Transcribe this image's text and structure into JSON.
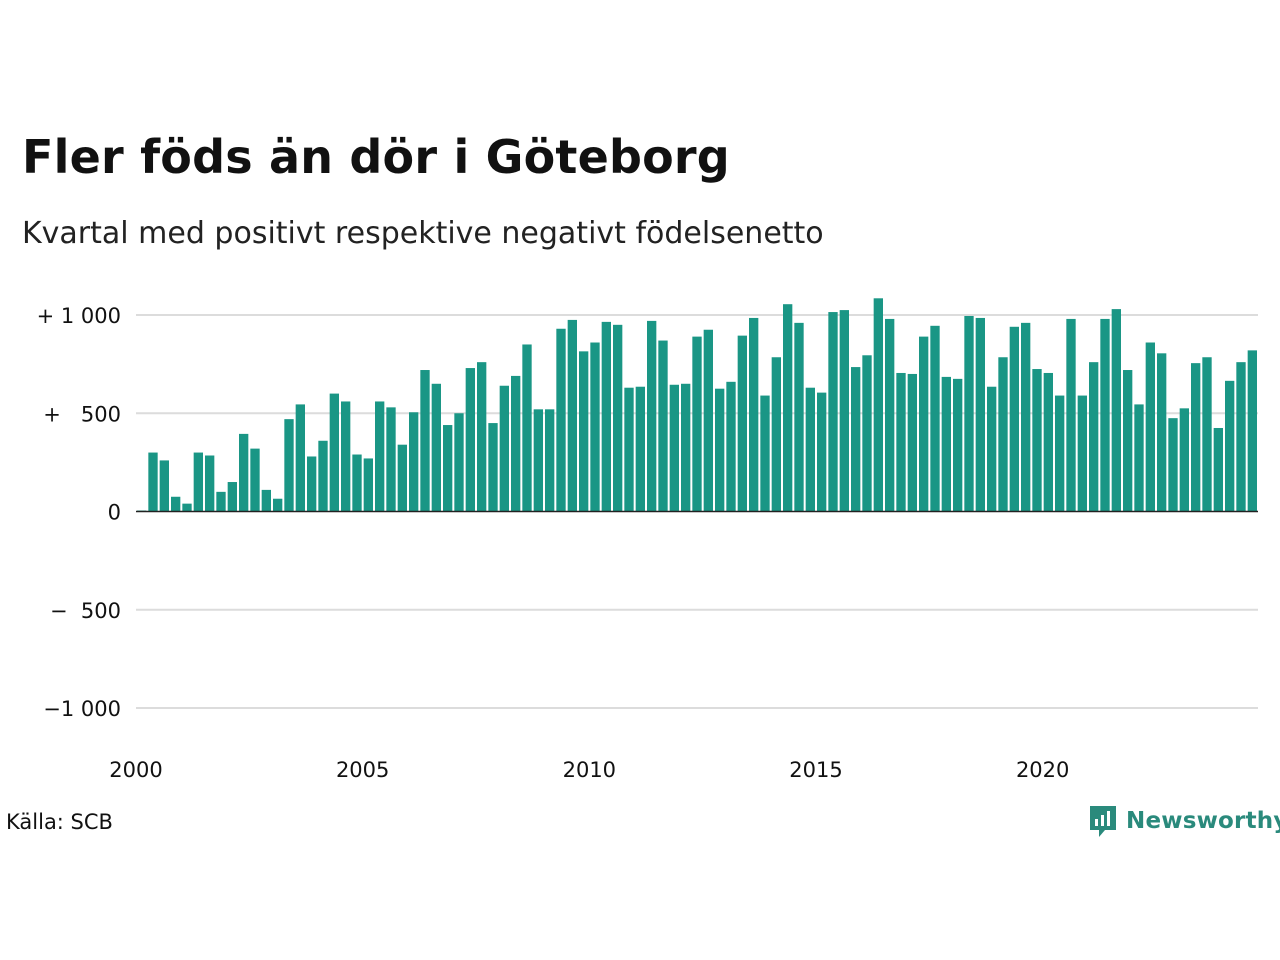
{
  "title": "Fler föds än dör i Göteborg",
  "subtitle": "Kvartal med positivt respektive negativt födelsenetto",
  "source": "Källa: SCB",
  "brand": "Newsworthy",
  "colors": {
    "positive_bar": "#1a9685",
    "gridline": "#dcdcdc",
    "zero_line": "#222222",
    "brand": "#2a8a7c"
  },
  "chart_data": {
    "type": "bar",
    "title": "Fler föds än dör i Göteborg",
    "subtitle": "Kvartal med positivt respektive negativt födelsenetto",
    "xlabel": "",
    "ylabel": "",
    "ylim": [
      -1000,
      1000
    ],
    "y_ticks": [
      1000,
      500,
      0,
      -500,
      -1000
    ],
    "y_tick_labels": [
      "+ 1 000",
      "+   500",
      "0",
      "−  500",
      "−1 000"
    ],
    "x_ticks": [
      2000,
      2005,
      2010,
      2015,
      2020
    ],
    "x_tick_labels": [
      "2000",
      "2005",
      "2010",
      "2015",
      "2020"
    ],
    "grid": true,
    "legend": "none",
    "first_quarter": "2000 Q1",
    "values": [
      5,
      300,
      260,
      75,
      40,
      300,
      285,
      100,
      150,
      395,
      320,
      110,
      65,
      470,
      545,
      280,
      360,
      600,
      560,
      290,
      270,
      560,
      530,
      340,
      505,
      720,
      650,
      440,
      500,
      730,
      760,
      450,
      640,
      690,
      850,
      520,
      520,
      930,
      975,
      815,
      860,
      965,
      950,
      630,
      635,
      970,
      870,
      645,
      650,
      890,
      925,
      625,
      660,
      895,
      985,
      590,
      785,
      1055,
      960,
      630,
      605,
      1015,
      1025,
      735,
      795,
      1085,
      980,
      705,
      700,
      890,
      945,
      685,
      675,
      995,
      985,
      635,
      785,
      940,
      960,
      725,
      705,
      590,
      980,
      590,
      760,
      980,
      1030,
      720,
      545,
      860,
      805,
      475,
      525,
      755,
      785,
      425,
      665,
      760,
      820
    ]
  }
}
